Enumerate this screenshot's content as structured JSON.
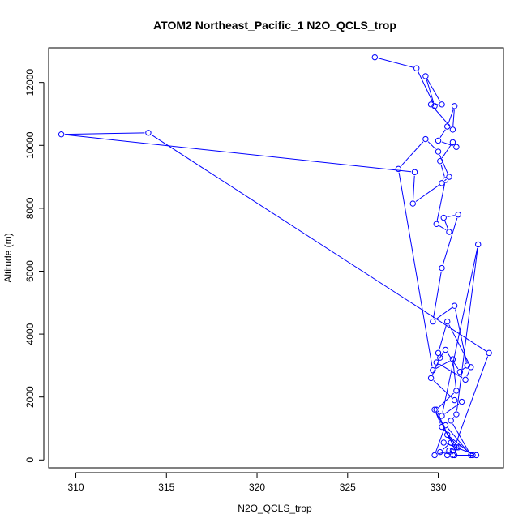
{
  "chart_data": {
    "type": "scatter",
    "mode": "lines+points",
    "title": "ATOM2 Northeast_Pacific_1 N2O_QCLS_trop",
    "xlabel": "N2O_QCLS_trop",
    "ylabel": "Altitude (m)",
    "xlim": [
      308.5,
      333.6
    ],
    "ylim": [
      -250,
      13100
    ],
    "xticks": [
      310,
      315,
      320,
      325,
      330
    ],
    "yticks": [
      0,
      2000,
      4000,
      6000,
      8000,
      10000,
      12000
    ],
    "grid": false,
    "legend": "none",
    "color": "#0000ff",
    "series": [
      {
        "x": [
          326.5,
          328.8,
          329.8,
          329.3,
          330.2,
          329.6,
          330.8,
          330.9,
          330.5,
          330.0,
          331.0,
          330.8,
          330.1,
          330.4,
          329.9,
          330.6,
          330.3,
          331.1,
          330.2,
          329.7,
          330.9,
          331.6,
          331.2,
          330.4,
          329.9,
          331.5,
          331.8,
          330.5,
          330.0,
          330.1,
          329.6,
          330.9,
          331.3,
          330.2,
          332.2,
          331.0,
          330.7,
          331.8,
          330.4,
          329.8,
          330.6,
          331.0,
          330.3,
          332.1,
          330.9,
          330.1,
          330.7,
          329.9,
          331.0,
          330.8,
          329.7,
          327.8,
          329.3,
          330.0,
          330.6,
          330.2,
          328.6,
          328.7,
          309.2,
          314.0,
          332.8,
          330.9,
          330.5,
          330.8,
          331.1,
          330.2,
          329.8,
          330.9,
          330.5,
          331.9,
          330.8
        ],
        "y": [
          12800,
          12450,
          11250,
          12200,
          11300,
          11300,
          10500,
          11250,
          10600,
          10150,
          9950,
          10100,
          9500,
          8900,
          7500,
          7250,
          7700,
          7800,
          6100,
          4400,
          4900,
          3000,
          2800,
          3500,
          3100,
          2550,
          2950,
          4400,
          3400,
          3250,
          2600,
          1900,
          1850,
          1400,
          6850,
          1450,
          1250,
          150,
          1100,
          150,
          300,
          400,
          550,
          150,
          150,
          250,
          550,
          1600,
          2200,
          3200,
          2850,
          9250,
          10200,
          9800,
          9000,
          8800,
          8150,
          9150,
          10350,
          10400,
          3400,
          400,
          150,
          300,
          400,
          1050,
          1600,
          400,
          800,
          150,
          150
        ]
      }
    ]
  }
}
